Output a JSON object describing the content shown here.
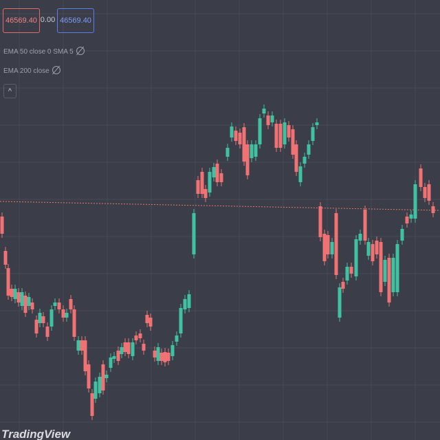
{
  "header": {
    "sell_price": "46569.40",
    "spread": "0.00",
    "buy_price": "46569.40"
  },
  "indicators": [
    "EMA 50 close 0 SMA 5",
    "EMA 200 close"
  ],
  "logo": "TradingView"
}
